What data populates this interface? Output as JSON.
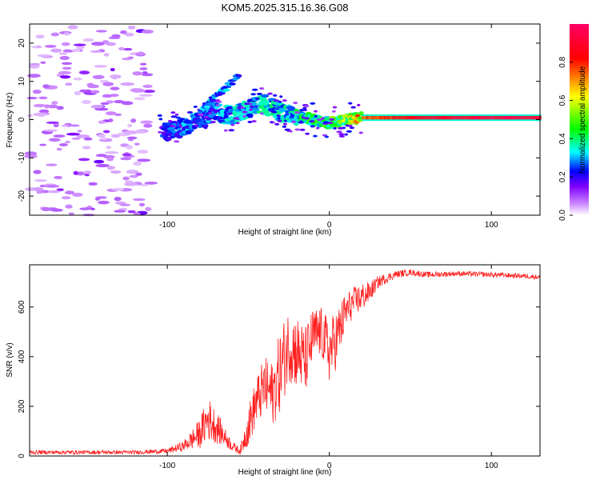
{
  "title": "KOM5.2025.315.16.36.G08",
  "chart_data": [
    {
      "type": "heatmap",
      "title": "KOM5.2025.315.16.36.G08",
      "xlabel": "Height of straight line (km)",
      "ylabel": "Frequency (Hz)",
      "xlim": [
        -185,
        130
      ],
      "ylim": [
        -25,
        25
      ],
      "xticks": [
        -100,
        0,
        100
      ],
      "yticks": [
        -20,
        -10,
        0,
        10,
        20
      ],
      "colorbar": {
        "label": "Normalized spectral amplitude",
        "range": [
          0,
          1
        ],
        "ticks": [
          0.0,
          0.2,
          0.4,
          0.6,
          0.8
        ],
        "colors": [
          "#ffffff",
          "#8000ff",
          "#0000ff",
          "#00ffff",
          "#00ff00",
          "#ffff00",
          "#ff0000",
          "#ff0066"
        ]
      },
      "ridge": {
        "description": "dominant frequency vs height",
        "x": [
          -100,
          -90,
          -80,
          -70,
          -60,
          -50,
          -40,
          -30,
          -20,
          -10,
          0,
          10,
          20,
          50,
          80,
          110,
          130
        ],
        "freq": [
          -3,
          -2,
          0,
          2,
          1,
          3,
          4,
          2,
          1,
          0,
          -1,
          0,
          0.5,
          0.5,
          0.5,
          0.5,
          0.5
        ],
        "amplitude": [
          0.25,
          0.3,
          0.3,
          0.3,
          0.35,
          0.35,
          0.4,
          0.35,
          0.4,
          0.45,
          0.5,
          0.55,
          0.75,
          0.85,
          0.9,
          0.95,
          0.9
        ]
      },
      "branch": {
        "x": [
          -78,
          -70,
          -62,
          -55
        ],
        "freq": [
          3,
          6,
          9,
          12
        ]
      },
      "noise_region": [
        -185,
        -100
      ]
    },
    {
      "type": "line",
      "xlabel": "Height of straight line (km)",
      "ylabel": "SNR (v/v)",
      "xlim": [
        -185,
        130
      ],
      "ylim": [
        0,
        770
      ],
      "xticks": [
        -100,
        0,
        100
      ],
      "yticks": [
        0,
        200,
        400,
        600
      ],
      "color": "#ff2020",
      "envelope": {
        "x": [
          -185,
          -120,
          -100,
          -90,
          -80,
          -75,
          -70,
          -65,
          -60,
          -55,
          -50,
          -45,
          -40,
          -35,
          -30,
          -25,
          -20,
          -15,
          -10,
          -5,
          0,
          5,
          10,
          15,
          20,
          25,
          30,
          40,
          50,
          60,
          80,
          100,
          120,
          130
        ],
        "y": [
          15,
          15,
          20,
          40,
          90,
          150,
          120,
          80,
          40,
          20,
          120,
          220,
          280,
          250,
          350,
          450,
          420,
          380,
          480,
          500,
          420,
          480,
          580,
          620,
          640,
          660,
          700,
          730,
          740,
          730,
          735,
          730,
          725,
          720
        ],
        "spread": [
          8,
          8,
          10,
          20,
          60,
          90,
          70,
          40,
          20,
          15,
          80,
          100,
          120,
          130,
          170,
          150,
          150,
          140,
          120,
          100,
          130,
          120,
          80,
          60,
          60,
          40,
          25,
          15,
          12,
          12,
          10,
          10,
          10,
          10
        ]
      }
    }
  ]
}
